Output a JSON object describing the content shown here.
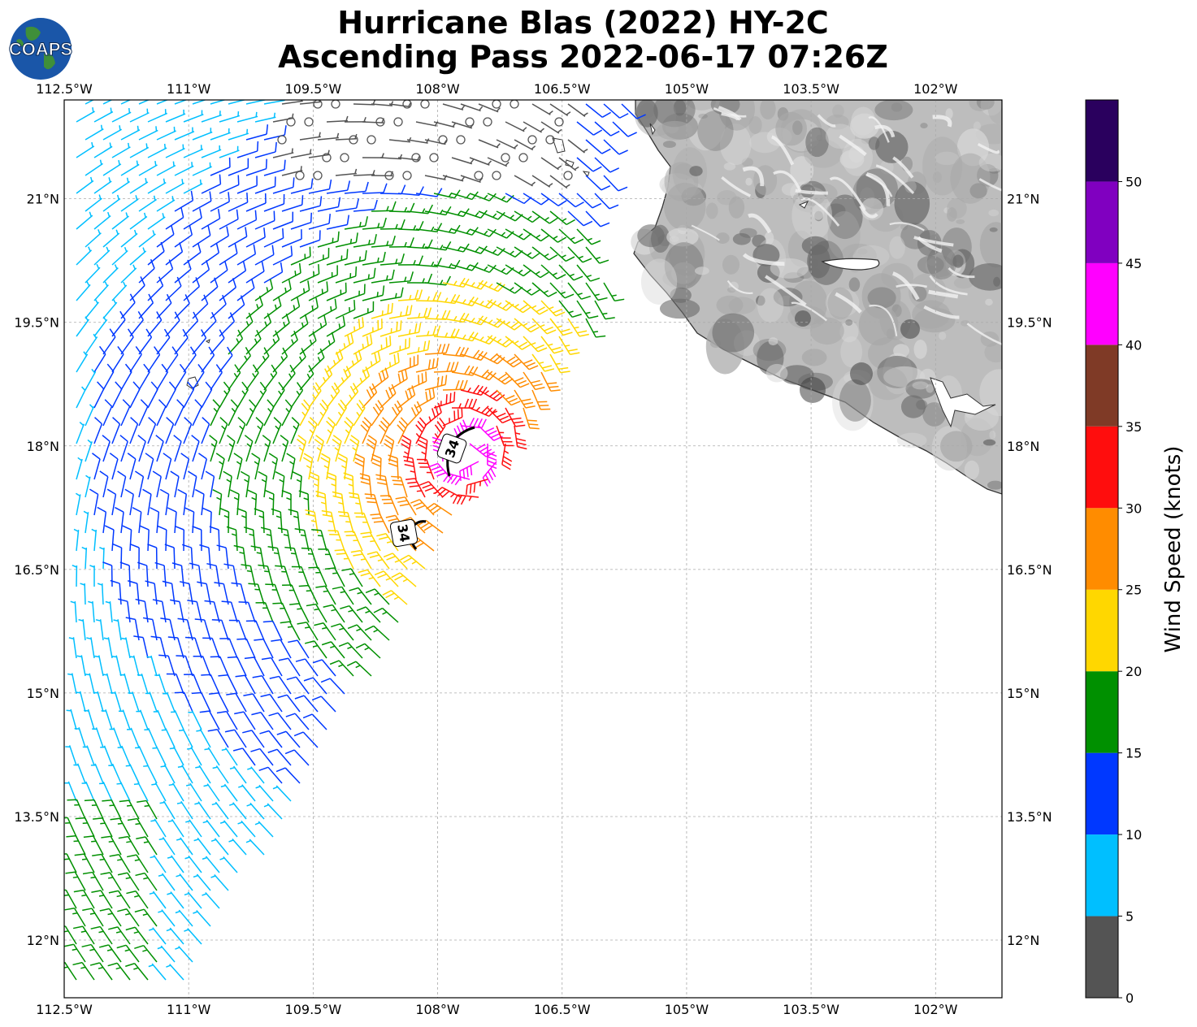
{
  "title": {
    "line1": "Hurricane Blas (2022) HY-2C",
    "line2": "Ascending Pass 2022-06-17 07:26Z"
  },
  "logo": {
    "text": "COAPS",
    "icon": "globe-icon"
  },
  "map": {
    "lon_labels": [
      "112.5°W",
      "111°W",
      "109.5°W",
      "108°W",
      "106.5°W",
      "105°W",
      "103.5°W",
      "102°W"
    ],
    "lat_labels": [
      "21°N",
      "19.5°N",
      "18°N",
      "16.5°N",
      "15°N",
      "13.5°N",
      "12°N"
    ],
    "lon_range": [
      -112.5,
      -101.2
    ],
    "lat_range": [
      11.3,
      22.2
    ],
    "grid": true,
    "land_colors": [
      "#d8d8d8",
      "#a8a8a8",
      "#6a6a6a"
    ],
    "contour_label": "34"
  },
  "colorbar": {
    "label": "Wind Speed (knots)",
    "ticks": [
      "0",
      "5",
      "10",
      "15",
      "20",
      "25",
      "30",
      "35",
      "40",
      "45",
      "50"
    ],
    "bins": [
      {
        "min": 0,
        "max": 5,
        "color": "#545454"
      },
      {
        "min": 5,
        "max": 10,
        "color": "#00bfff"
      },
      {
        "min": 10,
        "max": 15,
        "color": "#0038ff"
      },
      {
        "min": 15,
        "max": 20,
        "color": "#009000"
      },
      {
        "min": 20,
        "max": 25,
        "color": "#ffd700"
      },
      {
        "min": 25,
        "max": 30,
        "color": "#ff8c00"
      },
      {
        "min": 30,
        "max": 35,
        "color": "#ff0d0d"
      },
      {
        "min": 35,
        "max": 40,
        "color": "#7f3a26"
      },
      {
        "min": 40,
        "max": 45,
        "color": "#ff00ff"
      },
      {
        "min": 45,
        "max": 50,
        "color": "#8000c0"
      },
      {
        "min": 50,
        "max": 55,
        "color": "#2a005e"
      }
    ]
  }
}
